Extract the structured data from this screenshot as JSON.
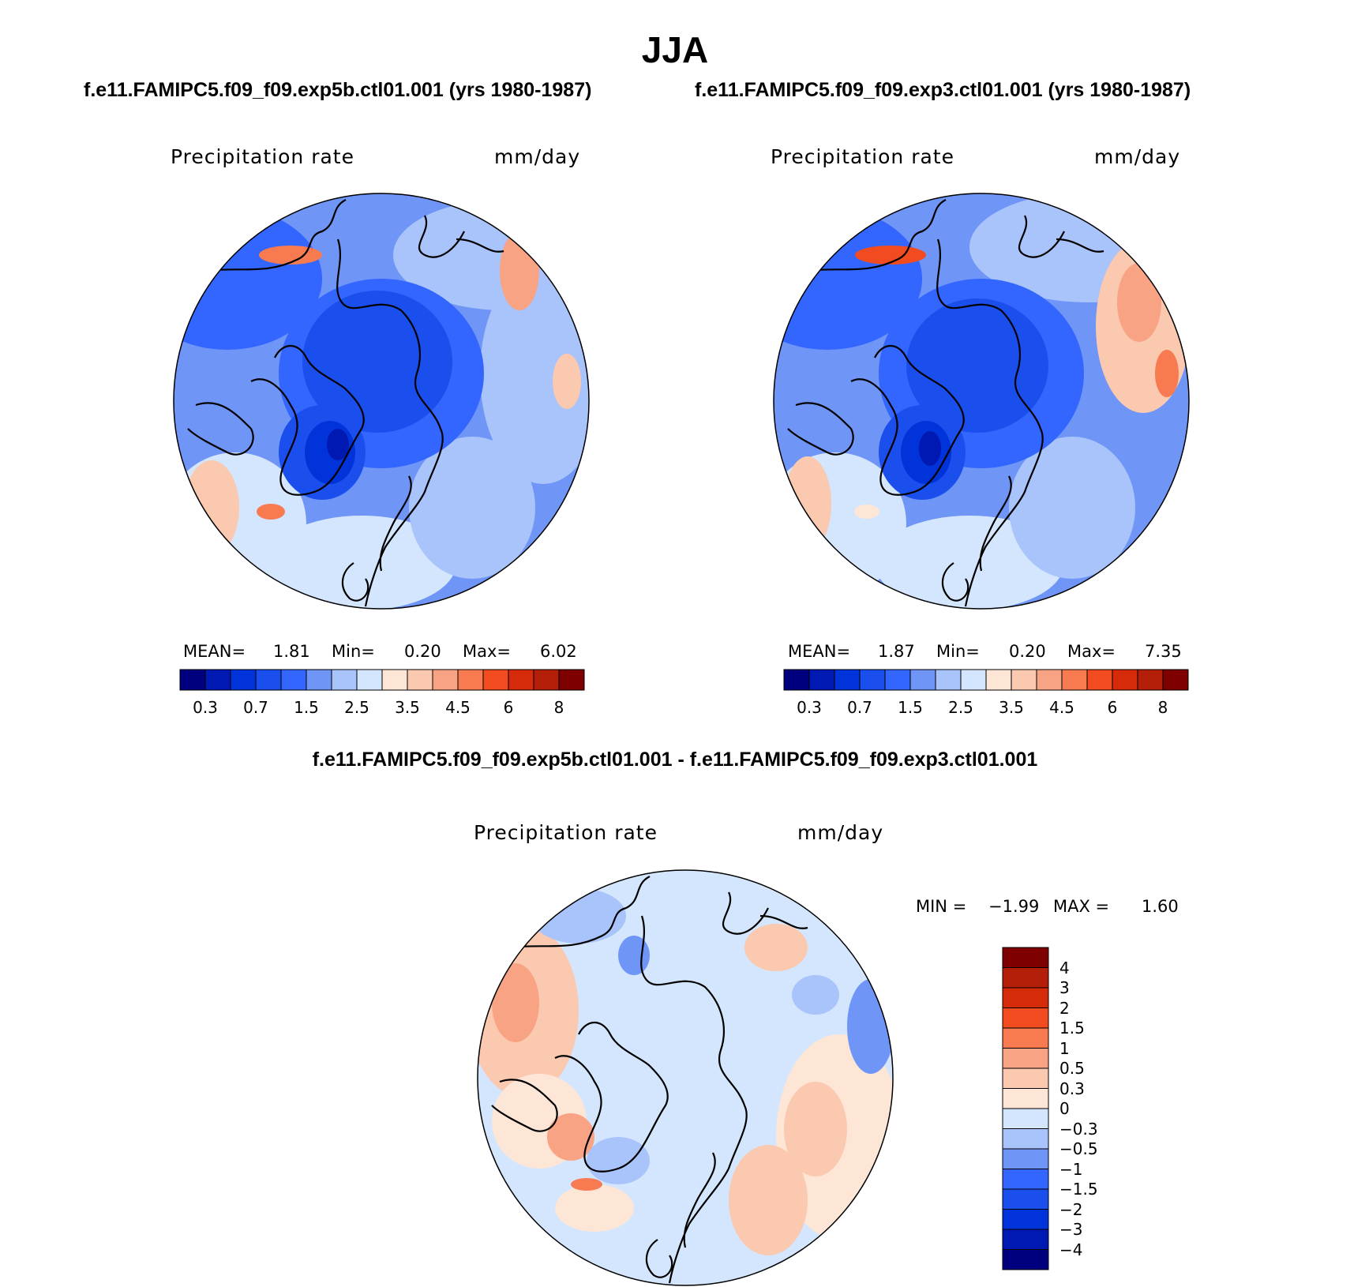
{
  "season_title": "JJA",
  "panels": [
    {
      "case_title": "f.e11.FAMIPC5.f09_f09.exp5b.ctl01.001 (yrs 1980-1987)",
      "variable": "Precipitation rate",
      "units": "mm/day",
      "stats": {
        "mean_label": "MEAN=",
        "mean": "1.81",
        "min_label": "Min=",
        "min": "0.20",
        "max_label": "Max=",
        "max": "6.02"
      }
    },
    {
      "case_title": "f.e11.FAMIPC5.f09_f09.exp3.ctl01.001 (yrs 1980-1987)",
      "variable": "Precipitation rate",
      "units": "mm/day",
      "stats": {
        "mean_label": "MEAN=",
        "mean": "1.87",
        "min_label": "Min=",
        "min": "0.20",
        "max_label": "Max=",
        "max": "7.35"
      }
    }
  ],
  "difference": {
    "title": "f.e11.FAMIPC5.f09_f09.exp5b.ctl01.001 - f.e11.FAMIPC5.f09_f09.exp3.ctl01.001",
    "variable": "Precipitation rate",
    "units": "mm/day",
    "stats": {
      "min_label": "MIN =",
      "min": "−1.99",
      "max_label": "MAX =",
      "max": "1.60"
    }
  },
  "colorbars": {
    "absolute": {
      "colors": [
        "#00007f",
        "#0019b3",
        "#0033d9",
        "#1a4fee",
        "#3366ff",
        "#6f96f6",
        "#a9c3fb",
        "#d4e6fd",
        "#fde6d6",
        "#fbc8b0",
        "#f9a385",
        "#f77a50",
        "#f24b1f",
        "#d62b0b",
        "#b31f08",
        "#7f0000"
      ],
      "tick_labels": [
        "0.3",
        "0.7",
        "1.5",
        "2.5",
        "3.5",
        "4.5",
        "6",
        "8"
      ]
    },
    "difference": {
      "colors": [
        "#7f0000",
        "#b31f08",
        "#d62b0b",
        "#f24b1f",
        "#f77a50",
        "#f9a385",
        "#fbc8b0",
        "#fde6d6",
        "#d4e6fd",
        "#a9c3fb",
        "#6f96f6",
        "#3366ff",
        "#1a4fee",
        "#0033d9",
        "#0019b3",
        "#00007f"
      ],
      "tick_labels": [
        "4",
        "3",
        "2",
        "1.5",
        "1",
        "0.5",
        "0.3",
        "0",
        "−0.3",
        "−0.5",
        "−1",
        "−1.5",
        "−2",
        "−3",
        "−4"
      ]
    }
  },
  "map": {
    "projection": "North polar stereographic",
    "ocean_color_note": "filled contours"
  }
}
